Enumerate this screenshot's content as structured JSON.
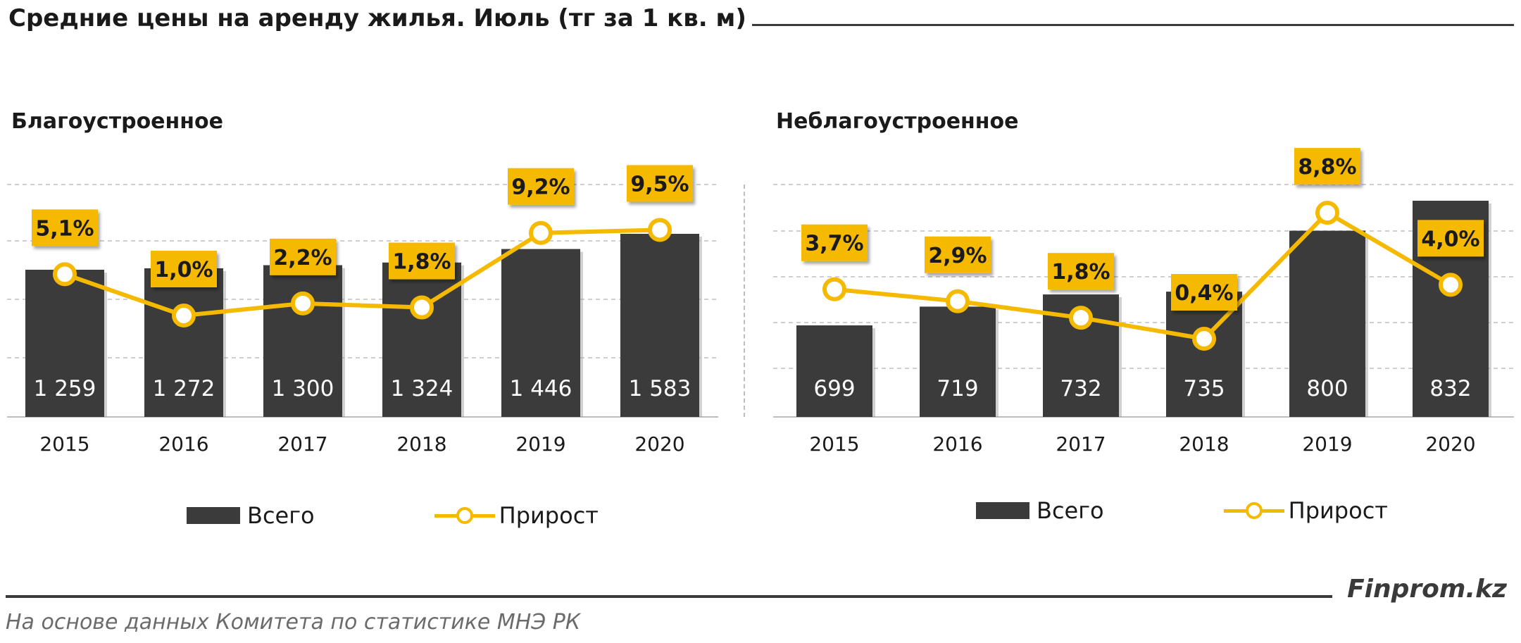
{
  "title": "Средние цены на аренду жилья. Июль (тг за 1 кв. м)",
  "brand": "Finprom.kz",
  "source": "На основе данных  Комитета по статистике МНЭ РК",
  "colors": {
    "bar": "#3b3b3b",
    "line": "#f5b900",
    "label_bg": "#f5b900",
    "text_on_bar": "#ffffff"
  },
  "chart_data": [
    {
      "type": "bar",
      "title": "Благоустроенное",
      "categories": [
        "2015",
        "2016",
        "2017",
        "2018",
        "2019",
        "2020"
      ],
      "series": [
        {
          "name": "Всего",
          "values": [
            1259,
            1272,
            1300,
            1324,
            1446,
            1583
          ],
          "labels": [
            "1 259",
            "1 272",
            "1 300",
            "1 324",
            "1 446",
            "1 583"
          ]
        },
        {
          "name": "Прирост",
          "type": "line",
          "values": [
            5.1,
            1.0,
            2.2,
            1.8,
            9.2,
            9.5
          ],
          "labels": [
            "5,1%",
            "1,0%",
            "2,2%",
            "1,8%",
            "9,2%",
            "9,5%"
          ]
        }
      ],
      "legend": {
        "bar": "Всего",
        "line": "Прирост",
        "position": "bottom"
      },
      "grid": true
    },
    {
      "type": "bar",
      "title": "Неблагоустроенное",
      "categories": [
        "2015",
        "2016",
        "2017",
        "2018",
        "2019",
        "2020"
      ],
      "series": [
        {
          "name": "Всего",
          "values": [
            699,
            719,
            732,
            735,
            800,
            832
          ],
          "labels": [
            "699",
            "719",
            "732",
            "735",
            "800",
            "832"
          ]
        },
        {
          "name": "Прирост",
          "type": "line",
          "values": [
            3.7,
            2.9,
            1.8,
            0.4,
            8.8,
            4.0
          ],
          "labels": [
            "3,7%",
            "2,9%",
            "1,8%",
            "0,4%",
            "8,8%",
            "4,0%"
          ]
        }
      ],
      "legend": {
        "bar": "Всего",
        "line": "Прирост",
        "position": "bottom"
      },
      "grid": true
    }
  ]
}
